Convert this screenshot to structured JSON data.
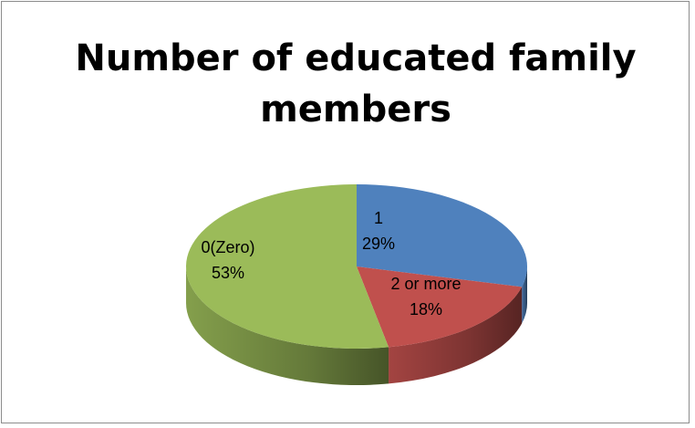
{
  "chart_data": {
    "type": "pie",
    "title": "Number of educated family members",
    "categories": [
      "1",
      "2 or more",
      "0(Zero)"
    ],
    "values": [
      29,
      18,
      53
    ],
    "value_labels": [
      "29%",
      "18%",
      "53%"
    ],
    "colors": [
      "#4f81bd",
      "#c0504d",
      "#9bbb59"
    ]
  }
}
